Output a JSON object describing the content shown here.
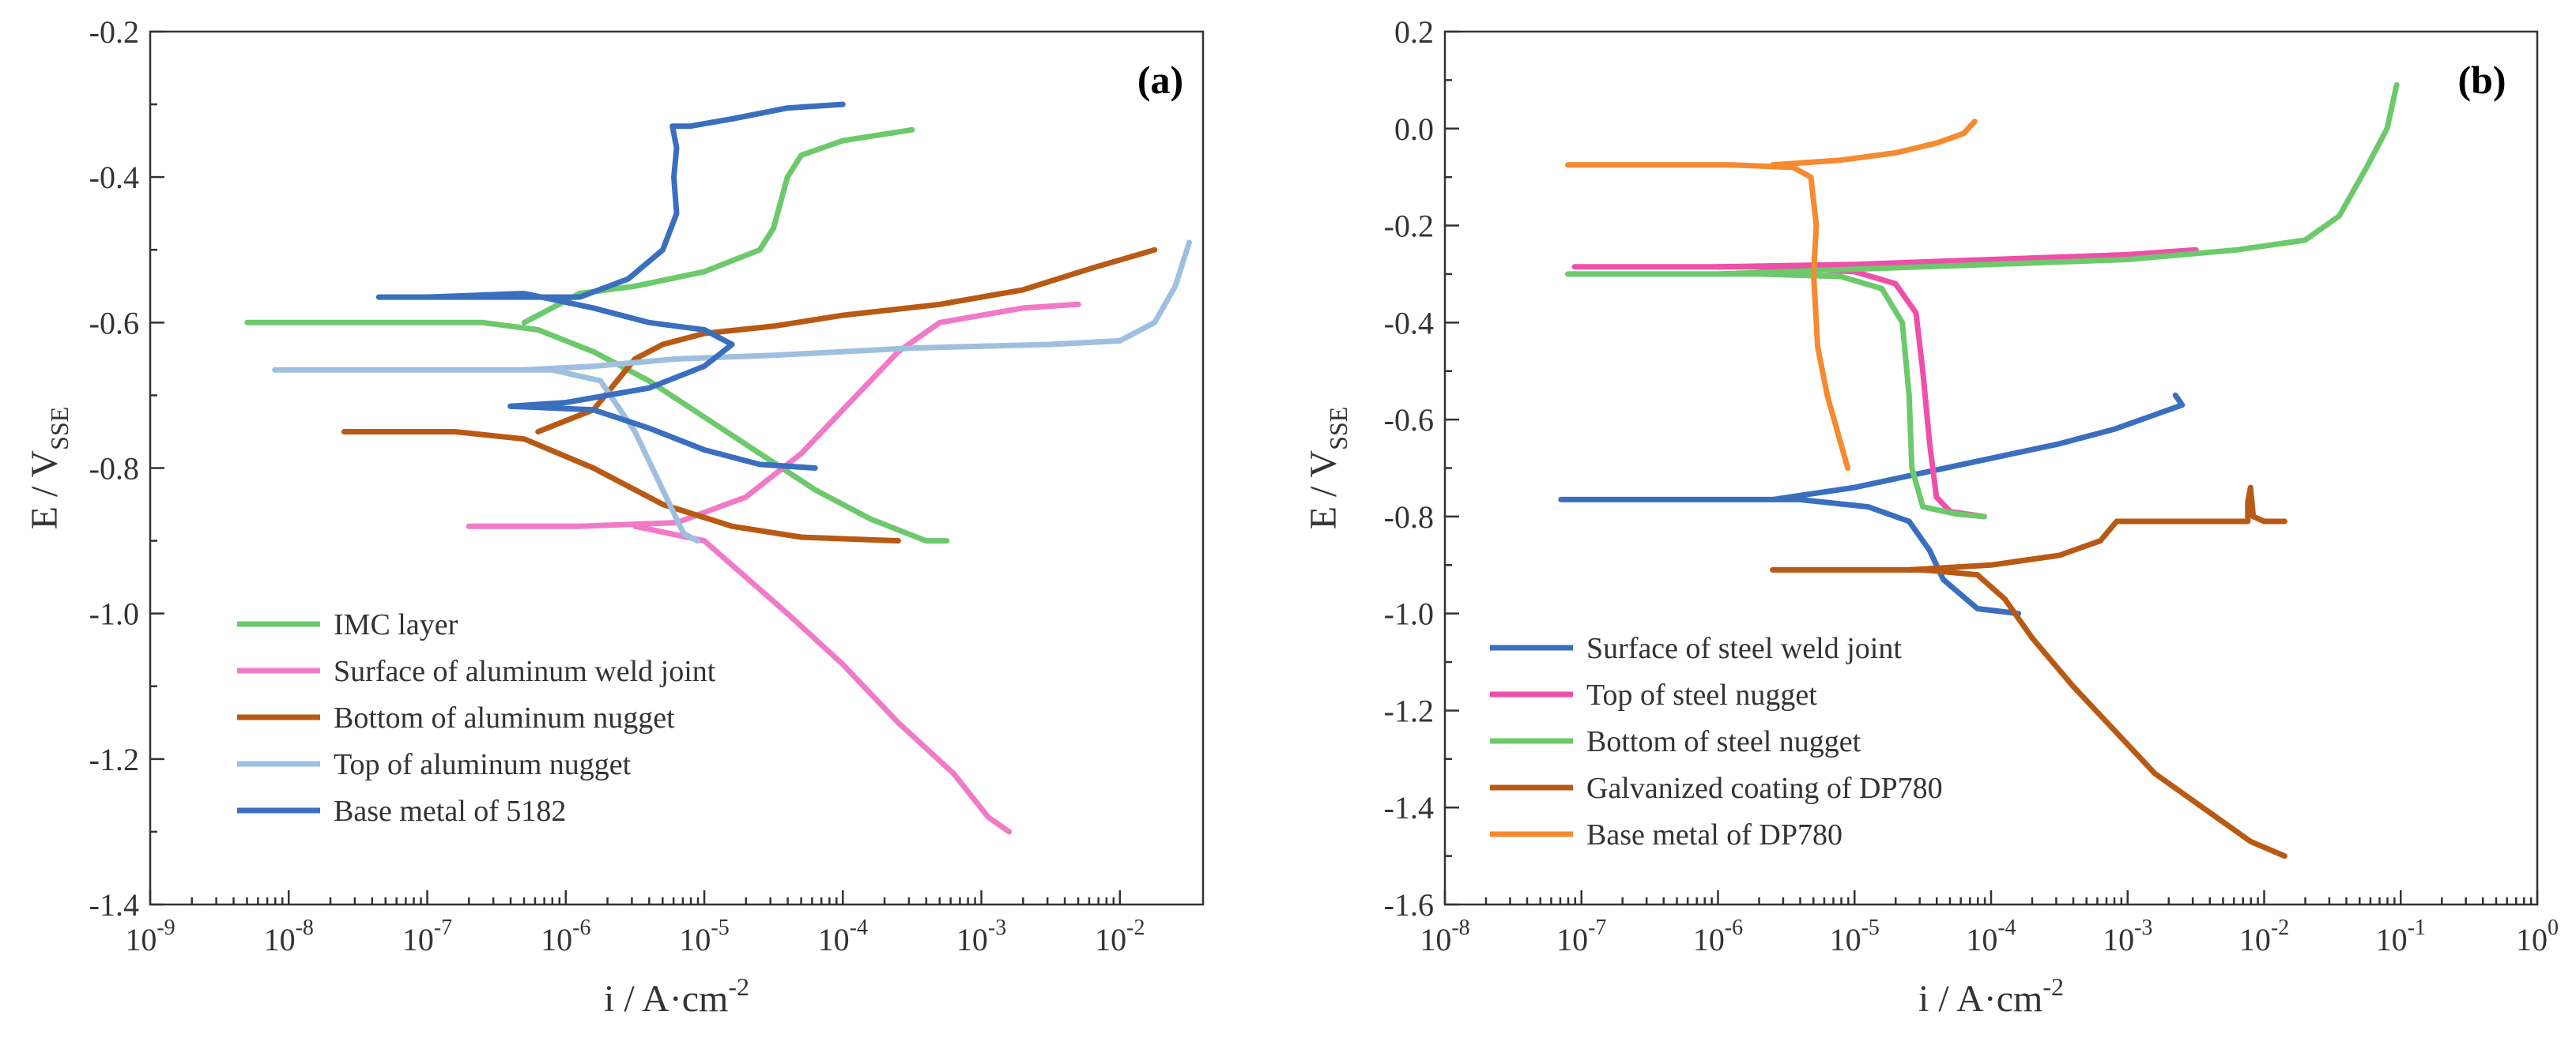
{
  "chart_data": [
    {
      "type": "line",
      "panel_label": "(a)",
      "xlabel": "i / A·cm",
      "xlabel_sup": "-2",
      "ylabel_main": "E / V",
      "ylabel_sub": "SSE",
      "xscale": "log",
      "xlim_exp": [
        -9,
        -1.4
      ],
      "ylim": [
        -1.4,
        -0.2
      ],
      "x_ticks": [
        {
          "base": "10",
          "exp": "-9",
          "exp_value": -9
        },
        {
          "base": "10",
          "exp": "-8",
          "exp_value": -8
        },
        {
          "base": "10",
          "exp": "-7",
          "exp_value": -7
        },
        {
          "base": "10",
          "exp": "-6",
          "exp_value": -6
        },
        {
          "base": "10",
          "exp": "-5",
          "exp_value": -5
        },
        {
          "base": "10",
          "exp": "-4",
          "exp_value": -4
        },
        {
          "base": "10",
          "exp": "-3",
          "exp_value": -3
        },
        {
          "base": "10",
          "exp": "-2",
          "exp_value": -2
        }
      ],
      "y_ticks": [
        {
          "label": "-0.2",
          "value": -0.2
        },
        {
          "label": "-0.4",
          "value": -0.4
        },
        {
          "label": "-0.6",
          "value": -0.6
        },
        {
          "label": "-0.8",
          "value": -0.8
        },
        {
          "label": "-1.0",
          "value": -1.0
        },
        {
          "label": "-1.2",
          "value": -1.2
        },
        {
          "label": "-1.4",
          "value": -1.4
        }
      ],
      "legend_position": "bottom-left",
      "series": [
        {
          "name": "IMC layer",
          "color": "#6cc96c",
          "points": [
            [
              -8.3,
              -0.6
            ],
            [
              -7.3,
              -0.6
            ],
            [
              -6.6,
              -0.6
            ],
            [
              -6.2,
              -0.61
            ],
            [
              -5.8,
              -0.64
            ],
            [
              -5.4,
              -0.68
            ],
            [
              -5.0,
              -0.73
            ],
            [
              -4.6,
              -0.78
            ],
            [
              -4.2,
              -0.83
            ],
            [
              -3.8,
              -0.87
            ],
            [
              -3.4,
              -0.9
            ],
            [
              -3.25,
              -0.9
            ]
          ],
          "points_b": [
            [
              -6.3,
              -0.6
            ],
            [
              -5.9,
              -0.56
            ],
            [
              -5.5,
              -0.55
            ],
            [
              -5.0,
              -0.53
            ],
            [
              -4.6,
              -0.5
            ],
            [
              -4.5,
              -0.47
            ],
            [
              -4.4,
              -0.4
            ],
            [
              -4.3,
              -0.37
            ],
            [
              -4.0,
              -0.35
            ],
            [
              -3.5,
              -0.335
            ]
          ]
        },
        {
          "name": "Surface of aluminum weld joint",
          "color": "#f07ac8",
          "points": [
            [
              -6.7,
              -0.88
            ],
            [
              -5.9,
              -0.88
            ],
            [
              -5.2,
              -0.875
            ],
            [
              -4.7,
              -0.84
            ],
            [
              -4.3,
              -0.78
            ],
            [
              -4.0,
              -0.72
            ],
            [
              -3.6,
              -0.64
            ],
            [
              -3.3,
              -0.6
            ],
            [
              -2.7,
              -0.58
            ],
            [
              -2.3,
              -0.575
            ]
          ],
          "points_b": [
            [
              -5.5,
              -0.88
            ],
            [
              -5.0,
              -0.9
            ],
            [
              -4.7,
              -0.95
            ],
            [
              -4.4,
              -1.0
            ],
            [
              -4.0,
              -1.07
            ],
            [
              -3.6,
              -1.15
            ],
            [
              -3.2,
              -1.22
            ],
            [
              -2.95,
              -1.28
            ],
            [
              -2.8,
              -1.3
            ]
          ]
        },
        {
          "name": "Bottom of aluminum nugget",
          "color": "#b85a14",
          "points": [
            [
              -7.6,
              -0.75
            ],
            [
              -6.8,
              -0.75
            ],
            [
              -6.3,
              -0.76
            ],
            [
              -5.8,
              -0.8
            ],
            [
              -5.3,
              -0.85
            ],
            [
              -4.8,
              -0.88
            ],
            [
              -4.3,
              -0.895
            ],
            [
              -3.6,
              -0.9
            ]
          ],
          "points_b": [
            [
              -6.2,
              -0.75
            ],
            [
              -5.8,
              -0.72
            ],
            [
              -5.5,
              -0.65
            ],
            [
              -5.3,
              -0.63
            ],
            [
              -5.0,
              -0.615
            ],
            [
              -4.5,
              -0.605
            ],
            [
              -4.0,
              -0.59
            ],
            [
              -3.3,
              -0.575
            ],
            [
              -2.7,
              -0.555
            ],
            [
              -2.2,
              -0.525
            ],
            [
              -1.75,
              -0.5
            ]
          ]
        },
        {
          "name": "Top of aluminum nugget",
          "color": "#9fbfe0",
          "points": [
            [
              -8.1,
              -0.665
            ],
            [
              -7.3,
              -0.665
            ],
            [
              -6.6,
              -0.665
            ],
            [
              -6.1,
              -0.665
            ],
            [
              -5.75,
              -0.68
            ],
            [
              -5.5,
              -0.75
            ],
            [
              -5.3,
              -0.83
            ],
            [
              -5.15,
              -0.89
            ],
            [
              -5.05,
              -0.9
            ]
          ],
          "points_b": [
            [
              -6.3,
              -0.665
            ],
            [
              -5.8,
              -0.66
            ],
            [
              -5.2,
              -0.65
            ],
            [
              -4.5,
              -0.645
            ],
            [
              -3.5,
              -0.635
            ],
            [
              -2.5,
              -0.63
            ],
            [
              -2.0,
              -0.625
            ],
            [
              -1.75,
              -0.6
            ],
            [
              -1.6,
              -0.55
            ],
            [
              -1.5,
              -0.49
            ]
          ]
        },
        {
          "name": "Base metal of 5182",
          "color": "#3a6fbf",
          "points": [
            [
              -7.35,
              -0.565
            ],
            [
              -6.6,
              -0.565
            ],
            [
              -5.9,
              -0.565
            ],
            [
              -5.55,
              -0.54
            ],
            [
              -5.3,
              -0.5
            ],
            [
              -5.2,
              -0.45
            ],
            [
              -5.22,
              -0.4
            ],
            [
              -5.2,
              -0.36
            ],
            [
              -5.23,
              -0.33
            ],
            [
              -5.1,
              -0.33
            ],
            [
              -4.8,
              -0.32
            ],
            [
              -4.4,
              -0.305
            ],
            [
              -4.0,
              -0.3
            ]
          ],
          "points_b": [
            [
              -7.0,
              -0.565
            ],
            [
              -6.3,
              -0.56
            ],
            [
              -5.8,
              -0.58
            ],
            [
              -5.4,
              -0.6
            ],
            [
              -5.0,
              -0.61
            ],
            [
              -4.8,
              -0.63
            ],
            [
              -5.0,
              -0.66
            ],
            [
              -5.4,
              -0.69
            ],
            [
              -6.0,
              -0.71
            ],
            [
              -6.4,
              -0.715
            ]
          ],
          "points_c": [
            [
              -6.4,
              -0.715
            ],
            [
              -5.8,
              -0.72
            ],
            [
              -5.4,
              -0.745
            ],
            [
              -5.0,
              -0.775
            ],
            [
              -4.6,
              -0.795
            ],
            [
              -4.2,
              -0.8
            ]
          ]
        }
      ]
    },
    {
      "type": "line",
      "panel_label": "(b)",
      "xlabel": "i / A·cm",
      "xlabel_sup": "-2",
      "ylabel_main": "E / V",
      "ylabel_sub": "SSE",
      "xscale": "log",
      "xlim_exp": [
        -8,
        0
      ],
      "ylim": [
        -1.6,
        0.2
      ],
      "x_ticks": [
        {
          "base": "10",
          "exp": "-8",
          "exp_value": -8
        },
        {
          "base": "10",
          "exp": "-7",
          "exp_value": -7
        },
        {
          "base": "10",
          "exp": "-6",
          "exp_value": -6
        },
        {
          "base": "10",
          "exp": "-5",
          "exp_value": -5
        },
        {
          "base": "10",
          "exp": "-4",
          "exp_value": -4
        },
        {
          "base": "10",
          "exp": "-3",
          "exp_value": -3
        },
        {
          "base": "10",
          "exp": "-2",
          "exp_value": -2
        },
        {
          "base": "10",
          "exp": "-1",
          "exp_value": -1
        },
        {
          "base": "10",
          "exp": "0",
          "exp_value": 0
        }
      ],
      "y_ticks": [
        {
          "label": "0.2",
          "value": 0.2
        },
        {
          "label": "0.0",
          "value": 0.0
        },
        {
          "label": "-0.2",
          "value": -0.2
        },
        {
          "label": "-0.4",
          "value": -0.4
        },
        {
          "label": "-0.6",
          "value": -0.6
        },
        {
          "label": "-0.8",
          "value": -0.8
        },
        {
          "label": "-1.0",
          "value": -1.0
        },
        {
          "label": "-1.2",
          "value": -1.2
        },
        {
          "label": "-1.4",
          "value": -1.4
        },
        {
          "label": "-1.6",
          "value": -1.6
        }
      ],
      "legend_position": "bottom-left",
      "series": [
        {
          "name": "Surface of steel weld joint",
          "color": "#3a6fbf",
          "points": [
            [
              -7.15,
              -0.765
            ],
            [
              -6.5,
              -0.765
            ],
            [
              -5.9,
              -0.765
            ],
            [
              -5.4,
              -0.765
            ],
            [
              -4.9,
              -0.78
            ],
            [
              -4.6,
              -0.81
            ],
            [
              -4.45,
              -0.87
            ],
            [
              -4.35,
              -0.93
            ],
            [
              -4.1,
              -0.99
            ],
            [
              -3.8,
              -1.0
            ]
          ],
          "points_b": [
            [
              -5.6,
              -0.765
            ],
            [
              -5.0,
              -0.74
            ],
            [
              -4.5,
              -0.71
            ],
            [
              -4.0,
              -0.68
            ],
            [
              -3.5,
              -0.65
            ],
            [
              -3.1,
              -0.62
            ],
            [
              -2.8,
              -0.59
            ],
            [
              -2.6,
              -0.57
            ],
            [
              -2.65,
              -0.55
            ]
          ]
        },
        {
          "name": "Top of steel nugget",
          "color": "#ee4fa8",
          "points": [
            [
              -7.05,
              -0.285
            ],
            [
              -6.4,
              -0.285
            ],
            [
              -5.7,
              -0.285
            ],
            [
              -5.0,
              -0.295
            ],
            [
              -4.7,
              -0.32
            ],
            [
              -4.55,
              -0.38
            ],
            [
              -4.5,
              -0.5
            ],
            [
              -4.45,
              -0.65
            ],
            [
              -4.4,
              -0.76
            ],
            [
              -4.3,
              -0.79
            ],
            [
              -4.05,
              -0.8
            ]
          ],
          "points_b": [
            [
              -6.0,
              -0.285
            ],
            [
              -5.0,
              -0.28
            ],
            [
              -4.0,
              -0.27
            ],
            [
              -3.0,
              -0.26
            ],
            [
              -2.5,
              -0.25
            ]
          ]
        },
        {
          "name": "Bottom of steel nugget",
          "color": "#6cc96c",
          "points": [
            [
              -7.1,
              -0.3
            ],
            [
              -6.4,
              -0.3
            ],
            [
              -5.7,
              -0.3
            ],
            [
              -5.1,
              -0.305
            ],
            [
              -4.8,
              -0.33
            ],
            [
              -4.65,
              -0.4
            ],
            [
              -4.6,
              -0.55
            ],
            [
              -4.58,
              -0.7
            ],
            [
              -4.5,
              -0.78
            ],
            [
              -4.25,
              -0.795
            ],
            [
              -4.05,
              -0.8
            ]
          ],
          "points_b": [
            [
              -6.0,
              -0.3
            ],
            [
              -5.0,
              -0.29
            ],
            [
              -4.0,
              -0.28
            ],
            [
              -3.0,
              -0.27
            ],
            [
              -2.2,
              -0.25
            ],
            [
              -1.7,
              -0.23
            ],
            [
              -1.45,
              -0.18
            ],
            [
              -1.25,
              -0.08
            ],
            [
              -1.1,
              0.0
            ],
            [
              -1.03,
              0.09
            ]
          ]
        },
        {
          "name": "Galvanized coating of DP780",
          "color": "#b85a14",
          "points": [
            [
              -5.6,
              -0.91
            ],
            [
              -5.0,
              -0.91
            ],
            [
              -4.5,
              -0.91
            ],
            [
              -4.1,
              -0.92
            ],
            [
              -3.9,
              -0.97
            ],
            [
              -3.7,
              -1.05
            ],
            [
              -3.4,
              -1.15
            ],
            [
              -3.1,
              -1.24
            ],
            [
              -2.8,
              -1.33
            ],
            [
              -2.4,
              -1.41
            ],
            [
              -2.1,
              -1.47
            ],
            [
              -1.85,
              -1.5
            ]
          ],
          "points_b": [
            [
              -4.6,
              -0.91
            ],
            [
              -4.0,
              -0.9
            ],
            [
              -3.5,
              -0.88
            ],
            [
              -3.2,
              -0.85
            ],
            [
              -3.08,
              -0.81
            ],
            [
              -2.6,
              -0.81
            ],
            [
              -2.12,
              -0.81
            ],
            [
              -2.12,
              -0.77
            ],
            [
              -2.1,
              -0.74
            ],
            [
              -2.08,
              -0.8
            ],
            [
              -2.0,
              -0.81
            ],
            [
              -1.85,
              -0.81
            ]
          ]
        },
        {
          "name": "Base metal of DP780",
          "color": "#f58a30",
          "points": [
            [
              -7.1,
              -0.075
            ],
            [
              -6.5,
              -0.075
            ],
            [
              -5.9,
              -0.075
            ],
            [
              -5.45,
              -0.08
            ],
            [
              -5.32,
              -0.1
            ],
            [
              -5.28,
              -0.2
            ],
            [
              -5.3,
              -0.3
            ],
            [
              -5.27,
              -0.45
            ],
            [
              -5.2,
              -0.55
            ],
            [
              -5.1,
              -0.65
            ],
            [
              -5.05,
              -0.7
            ]
          ],
          "points_b": [
            [
              -5.6,
              -0.075
            ],
            [
              -5.1,
              -0.065
            ],
            [
              -4.7,
              -0.05
            ],
            [
              -4.4,
              -0.03
            ],
            [
              -4.2,
              -0.01
            ],
            [
              -4.12,
              0.015
            ]
          ]
        }
      ]
    }
  ]
}
